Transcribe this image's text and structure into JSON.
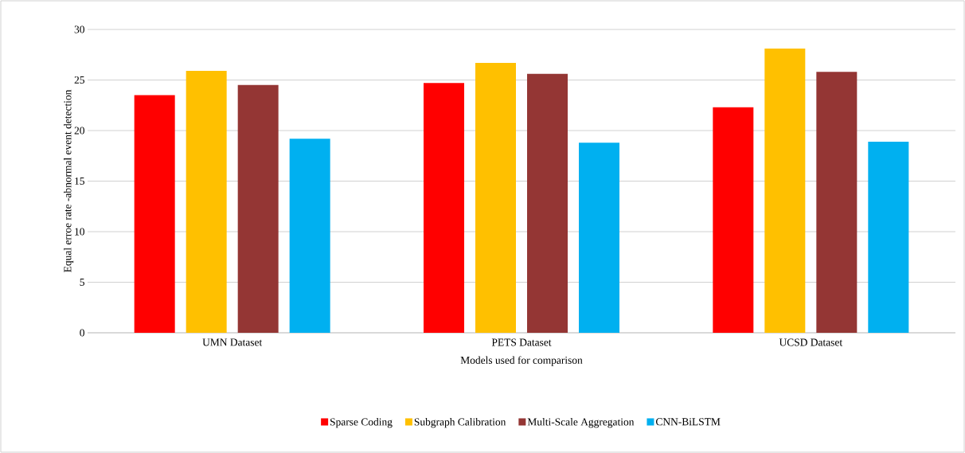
{
  "chart_data": {
    "type": "bar",
    "xlabel": "Models used for comparison",
    "ylabel": "Equal erroe rate -abnormal event detection",
    "categories": [
      "UMN Dataset",
      "PETS Dataset",
      "UCSD Dataset"
    ],
    "series": [
      {
        "name": "Sparse Coding",
        "color": "#ff0000",
        "values": [
          23.5,
          24.7,
          22.3
        ]
      },
      {
        "name": "Subgraph Calibration",
        "color": "#ffc000",
        "values": [
          25.9,
          26.7,
          28.1
        ]
      },
      {
        "name": "Multi-Scale Aggregation",
        "color": "#943634",
        "values": [
          24.5,
          25.6,
          25.8
        ]
      },
      {
        "name": "CNN-BiLSTM",
        "color": "#00b0f0",
        "values": [
          19.2,
          18.8,
          18.9
        ]
      }
    ],
    "ylim": [
      0,
      30
    ],
    "yticks": [
      0,
      5,
      10,
      15,
      20,
      25,
      30
    ],
    "grid": "y",
    "legend": "bottom"
  }
}
